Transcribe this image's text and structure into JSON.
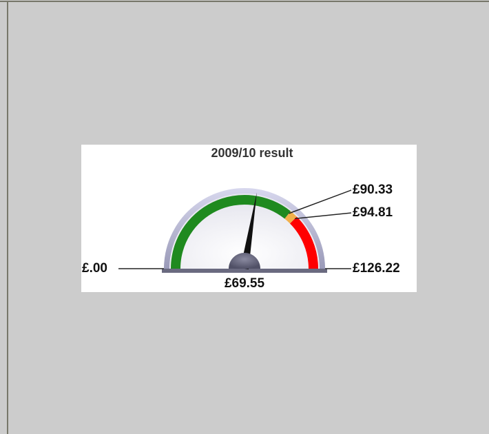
{
  "chart_data": {
    "type": "gauge",
    "title": "2009/10 result",
    "range": [
      0,
      126.22
    ],
    "range_labels": [
      "£.00",
      "£126.22"
    ],
    "value": 69.55,
    "value_label": "£69.55",
    "thresholds": [
      90.33,
      94.81
    ],
    "threshold_labels": [
      "£90.33",
      "£94.81"
    ],
    "band_colors": [
      "#1f8a1f",
      "#f2b04a",
      "#ff0000"
    ],
    "needle_color": "#111111"
  }
}
